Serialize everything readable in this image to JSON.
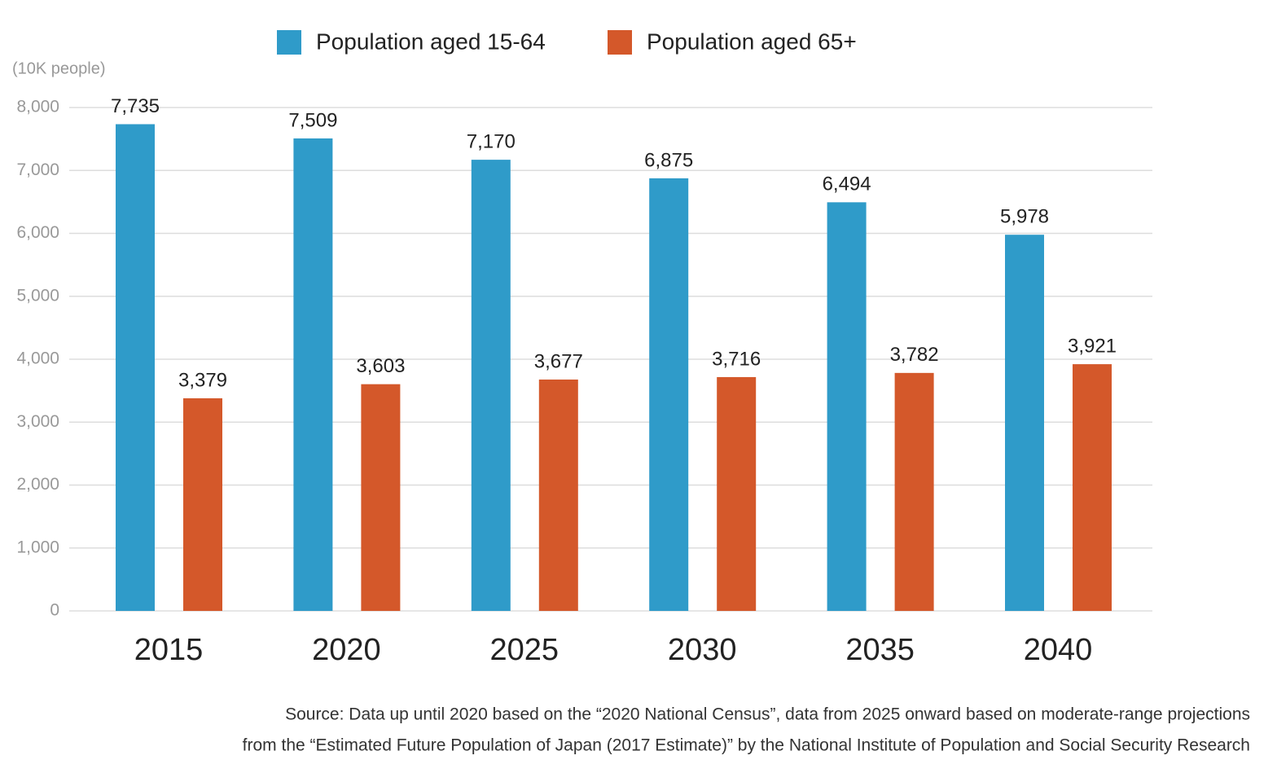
{
  "chart_data": {
    "type": "grouped-bar",
    "y_axis_label": "(10K people)",
    "categories": [
      "2015",
      "2020",
      "2025",
      "2030",
      "2035",
      "2040"
    ],
    "series": [
      {
        "name": "Population aged 15-64",
        "color": "#2f9bc9",
        "values": [
          7735,
          7509,
          7170,
          6875,
          6494,
          5978
        ],
        "value_labels": [
          "7,735",
          "7,509",
          "7,170",
          "6,875",
          "6,494",
          "5,978"
        ]
      },
      {
        "name": "Population aged 65+",
        "color": "#d4582a",
        "values": [
          3379,
          3603,
          3677,
          3716,
          3782,
          3921
        ],
        "value_labels": [
          "3,379",
          "3,603",
          "3,677",
          "3,716",
          "3,782",
          "3,921"
        ]
      }
    ],
    "ylim": [
      0,
      8000
    ],
    "yticks": [
      0,
      {
        "value": 1000,
        "label": "1,000"
      },
      {
        "value": 2000,
        "label": "2,000"
      },
      {
        "value": 3000,
        "label": "3,000"
      },
      {
        "value": 4000,
        "label": "4,000"
      },
      {
        "value": 5000,
        "label": "5,000"
      },
      {
        "value": 6000,
        "label": "6,000"
      },
      {
        "value": 7000,
        "label": "7,000"
      },
      {
        "value": 8000,
        "label": "8,000"
      }
    ],
    "grid": true,
    "legend_position": "top",
    "source": [
      "Source: Data up until 2020 based on the “2020 National Census”, data from 2025 onward based on moderate-range projections",
      "from the “Estimated Future Population of Japan (2017 Estimate)” by the National Institute of Population and Social Security Research"
    ]
  }
}
